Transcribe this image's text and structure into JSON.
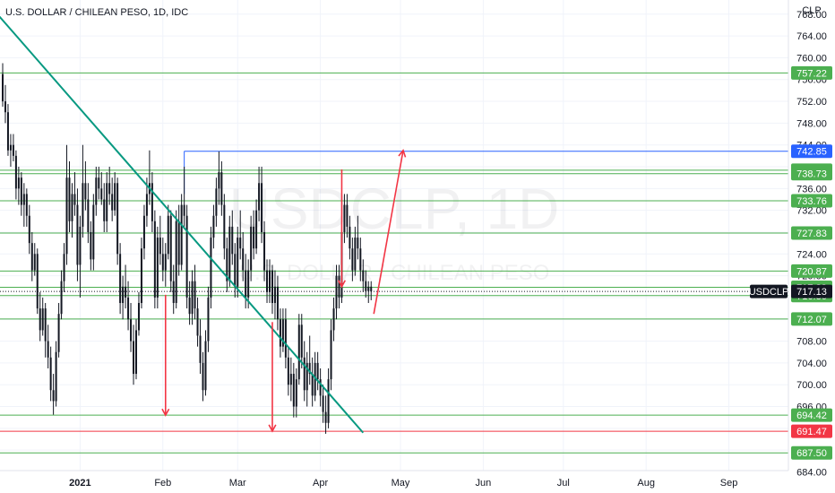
{
  "chart_data": {
    "type": "candlestick",
    "title": "U.S. DOLLAR / CHILEAN PESO, 1D, IDC",
    "watermark_symbol": "USDCLP, 1D",
    "watermark_name": "U.S. DOLLAR / CHILEAN PESO",
    "currency_label": "CLP",
    "symbol": "USDCLP",
    "last_price": 717.13,
    "ylim": [
      684,
      768
    ],
    "y_ticks": [
      "684.00",
      "688.00",
      "692.00",
      "696.00",
      "700.00",
      "704.00",
      "708.00",
      "712.00",
      "716.00",
      "720.00",
      "724.00",
      "728.00",
      "732.00",
      "736.00",
      "740.00",
      "744.00",
      "748.00",
      "752.00",
      "756.00",
      "760.00",
      "764.00",
      "768.00"
    ],
    "x_ticks": [
      {
        "label": "2021",
        "day": 29
      },
      {
        "label": "Feb",
        "day": 60
      },
      {
        "label": "Mar",
        "day": 88
      },
      {
        "label": "Apr",
        "day": 119
      },
      {
        "label": "May",
        "day": 149
      },
      {
        "label": "Jun",
        "day": 180
      },
      {
        "label": "Jul",
        "day": 210
      },
      {
        "label": "Aug",
        "day": 241
      },
      {
        "label": "Sep",
        "day": 272
      }
    ],
    "price_levels": [
      {
        "value": 757.22,
        "label": "757.22",
        "color": "#4caf50"
      },
      {
        "value": 742.85,
        "label": "742.85",
        "color": "#2962ff"
      },
      {
        "value": 739.37,
        "label": "739.37",
        "color": "#4caf50"
      },
      {
        "value": 738.73,
        "label": "738.73",
        "color": "#4caf50"
      },
      {
        "value": 733.76,
        "label": "733.76",
        "color": "#4caf50"
      },
      {
        "value": 727.83,
        "label": "727.83",
        "color": "#4caf50"
      },
      {
        "value": 720.87,
        "label": "720.87",
        "color": "#4caf50"
      },
      {
        "value": 717.89,
        "label": "717.89",
        "color": "#4caf50"
      },
      {
        "value": 716.36,
        "label": "716.36",
        "color": "#4caf50"
      },
      {
        "value": 712.07,
        "label": "712.07",
        "color": "#4caf50"
      },
      {
        "value": 694.42,
        "label": "694.42",
        "color": "#4caf50"
      },
      {
        "value": 691.47,
        "label": "691.47",
        "color": "#f23645"
      },
      {
        "value": 687.5,
        "label": "687.50",
        "color": "#4caf50"
      }
    ],
    "candles": [
      {
        "d": 0,
        "o": 757.0,
        "h": 759.0,
        "l": 751.0,
        "c": 752.0
      },
      {
        "d": 1,
        "o": 752.0,
        "h": 755.0,
        "l": 748.0,
        "c": 750.0
      },
      {
        "d": 2,
        "o": 750.0,
        "h": 751.5,
        "l": 742.0,
        "c": 743.0
      },
      {
        "d": 3,
        "o": 743.0,
        "h": 746.0,
        "l": 740.0,
        "c": 744.0
      },
      {
        "d": 4,
        "o": 744.0,
        "h": 746.0,
        "l": 741.0,
        "c": 742.0
      },
      {
        "d": 5,
        "o": 742.0,
        "h": 743.0,
        "l": 734.0,
        "c": 736.0
      },
      {
        "d": 6,
        "o": 736.0,
        "h": 740.0,
        "l": 733.0,
        "c": 738.0
      },
      {
        "d": 7,
        "o": 738.0,
        "h": 739.0,
        "l": 731.0,
        "c": 733.0
      },
      {
        "d": 8,
        "o": 733.0,
        "h": 737.0,
        "l": 729.0,
        "c": 735.0
      },
      {
        "d": 9,
        "o": 735.0,
        "h": 736.0,
        "l": 729.0,
        "c": 731.0
      },
      {
        "d": 10,
        "o": 731.0,
        "h": 733.0,
        "l": 724.0,
        "c": 726.0
      },
      {
        "d": 11,
        "o": 726.0,
        "h": 728.0,
        "l": 719.0,
        "c": 721.0
      },
      {
        "d": 12,
        "o": 721.0,
        "h": 726.0,
        "l": 720.0,
        "c": 724.0
      },
      {
        "d": 13,
        "o": 724.0,
        "h": 725.0,
        "l": 713.0,
        "c": 714.0
      },
      {
        "d": 14,
        "o": 714.0,
        "h": 717.0,
        "l": 708.0,
        "c": 710.0
      },
      {
        "d": 15,
        "o": 710.0,
        "h": 716.0,
        "l": 709.0,
        "c": 714.0
      },
      {
        "d": 16,
        "o": 714.0,
        "h": 715.0,
        "l": 705.0,
        "c": 708.0
      },
      {
        "d": 17,
        "o": 708.0,
        "h": 711.0,
        "l": 703.0,
        "c": 705.0
      },
      {
        "d": 18,
        "o": 705.0,
        "h": 707.0,
        "l": 697.0,
        "c": 699.0
      },
      {
        "d": 19,
        "o": 699.0,
        "h": 702.0,
        "l": 694.5,
        "c": 697.0
      },
      {
        "d": 20,
        "o": 697.0,
        "h": 708.0,
        "l": 696.0,
        "c": 706.0
      },
      {
        "d": 21,
        "o": 706.0,
        "h": 715.0,
        "l": 705.0,
        "c": 713.0
      },
      {
        "d": 22,
        "o": 713.0,
        "h": 721.0,
        "l": 712.0,
        "c": 719.0
      },
      {
        "d": 23,
        "o": 719.0,
        "h": 726.0,
        "l": 717.0,
        "c": 724.0
      },
      {
        "d": 24,
        "o": 724.0,
        "h": 744.0,
        "l": 722.0,
        "c": 738.0
      },
      {
        "d": 25,
        "o": 738.0,
        "h": 741.0,
        "l": 728.0,
        "c": 730.0
      },
      {
        "d": 26,
        "o": 730.0,
        "h": 737.0,
        "l": 727.0,
        "c": 735.0
      },
      {
        "d": 27,
        "o": 735.0,
        "h": 739.0,
        "l": 731.0,
        "c": 733.0
      },
      {
        "d": 28,
        "o": 733.0,
        "h": 736.0,
        "l": 719.0,
        "c": 722.0
      },
      {
        "d": 29,
        "o": 722.0,
        "h": 731.0,
        "l": 716.0,
        "c": 729.0
      },
      {
        "d": 30,
        "o": 729.0,
        "h": 744.0,
        "l": 727.0,
        "c": 737.0
      },
      {
        "d": 31,
        "o": 737.0,
        "h": 741.0,
        "l": 732.0,
        "c": 734.0
      },
      {
        "d": 32,
        "o": 734.0,
        "h": 737.0,
        "l": 726.0,
        "c": 728.0
      },
      {
        "d": 33,
        "o": 728.0,
        "h": 730.0,
        "l": 721.0,
        "c": 723.0
      },
      {
        "d": 34,
        "o": 723.0,
        "h": 735.0,
        "l": 721.0,
        "c": 733.0
      },
      {
        "d": 35,
        "o": 733.0,
        "h": 740.0,
        "l": 731.0,
        "c": 738.0
      },
      {
        "d": 36,
        "o": 738.0,
        "h": 740.0,
        "l": 734.0,
        "c": 736.0
      },
      {
        "d": 37,
        "o": 736.0,
        "h": 739.0,
        "l": 733.0,
        "c": 734.0
      },
      {
        "d": 38,
        "o": 734.0,
        "h": 737.0,
        "l": 728.0,
        "c": 730.0
      },
      {
        "d": 39,
        "o": 730.0,
        "h": 739.0,
        "l": 728.0,
        "c": 737.0
      },
      {
        "d": 40,
        "o": 737.0,
        "h": 740.0,
        "l": 733.0,
        "c": 735.0
      },
      {
        "d": 41,
        "o": 735.0,
        "h": 738.0,
        "l": 730.0,
        "c": 732.0
      },
      {
        "d": 42,
        "o": 732.0,
        "h": 739.0,
        "l": 731.0,
        "c": 737.0
      },
      {
        "d": 43,
        "o": 737.0,
        "h": 738.0,
        "l": 722.0,
        "c": 724.0
      },
      {
        "d": 44,
        "o": 724.0,
        "h": 726.0,
        "l": 713.0,
        "c": 715.0
      },
      {
        "d": 45,
        "o": 715.0,
        "h": 720.0,
        "l": 712.0,
        "c": 718.0
      },
      {
        "d": 46,
        "o": 718.0,
        "h": 722.0,
        "l": 714.0,
        "c": 716.0
      },
      {
        "d": 47,
        "o": 716.0,
        "h": 719.0,
        "l": 710.0,
        "c": 712.0
      },
      {
        "d": 48,
        "o": 712.0,
        "h": 715.0,
        "l": 706.0,
        "c": 708.0
      },
      {
        "d": 49,
        "o": 708.0,
        "h": 711.0,
        "l": 700.0,
        "c": 702.0
      },
      {
        "d": 50,
        "o": 702.0,
        "h": 712.0,
        "l": 701.0,
        "c": 710.0
      },
      {
        "d": 51,
        "o": 710.0,
        "h": 717.0,
        "l": 709.0,
        "c": 715.0
      },
      {
        "d": 52,
        "o": 715.0,
        "h": 727.0,
        "l": 714.0,
        "c": 725.0
      },
      {
        "d": 53,
        "o": 725.0,
        "h": 733.0,
        "l": 723.0,
        "c": 731.0
      },
      {
        "d": 54,
        "o": 731.0,
        "h": 738.0,
        "l": 729.0,
        "c": 735.0
      },
      {
        "d": 55,
        "o": 735.0,
        "h": 743.0,
        "l": 733.0,
        "c": 737.0
      },
      {
        "d": 56,
        "o": 737.0,
        "h": 739.0,
        "l": 728.0,
        "c": 730.0
      },
      {
        "d": 57,
        "o": 730.0,
        "h": 732.0,
        "l": 714.0,
        "c": 716.0
      },
      {
        "d": 58,
        "o": 716.0,
        "h": 729.0,
        "l": 714.0,
        "c": 727.0
      },
      {
        "d": 59,
        "o": 727.0,
        "h": 731.0,
        "l": 722.0,
        "c": 724.0
      },
      {
        "d": 60,
        "o": 724.0,
        "h": 727.0,
        "l": 719.0,
        "c": 721.0
      },
      {
        "d": 61,
        "o": 721.0,
        "h": 726.0,
        "l": 718.0,
        "c": 724.0
      },
      {
        "d": 62,
        "o": 724.0,
        "h": 733.0,
        "l": 723.0,
        "c": 731.0
      },
      {
        "d": 63,
        "o": 731.0,
        "h": 732.0,
        "l": 717.0,
        "c": 719.0
      },
      {
        "d": 64,
        "o": 719.0,
        "h": 722.0,
        "l": 713.0,
        "c": 715.0
      },
      {
        "d": 65,
        "o": 715.0,
        "h": 732.0,
        "l": 714.0,
        "c": 730.0
      },
      {
        "d": 66,
        "o": 730.0,
        "h": 733.0,
        "l": 720.0,
        "c": 722.0
      },
      {
        "d": 67,
        "o": 722.0,
        "h": 735.0,
        "l": 721.0,
        "c": 733.0
      },
      {
        "d": 68,
        "o": 733.0,
        "h": 740.0,
        "l": 729.0,
        "c": 731.0
      },
      {
        "d": 69,
        "o": 731.0,
        "h": 733.0,
        "l": 714.0,
        "c": 716.0
      },
      {
        "d": 70,
        "o": 716.0,
        "h": 719.0,
        "l": 711.0,
        "c": 713.0
      },
      {
        "d": 71,
        "o": 713.0,
        "h": 721.0,
        "l": 711.0,
        "c": 719.0
      },
      {
        "d": 72,
        "o": 719.0,
        "h": 722.0,
        "l": 712.0,
        "c": 714.0
      },
      {
        "d": 73,
        "o": 714.0,
        "h": 716.0,
        "l": 707.0,
        "c": 709.0
      },
      {
        "d": 74,
        "o": 709.0,
        "h": 712.0,
        "l": 702.0,
        "c": 704.0
      },
      {
        "d": 75,
        "o": 704.0,
        "h": 706.0,
        "l": 697.0,
        "c": 699.0
      },
      {
        "d": 76,
        "o": 699.0,
        "h": 710.0,
        "l": 698.0,
        "c": 708.0
      },
      {
        "d": 77,
        "o": 708.0,
        "h": 718.0,
        "l": 706.0,
        "c": 716.0
      },
      {
        "d": 78,
        "o": 716.0,
        "h": 729.0,
        "l": 714.0,
        "c": 727.0
      },
      {
        "d": 79,
        "o": 727.0,
        "h": 733.0,
        "l": 725.0,
        "c": 731.0
      },
      {
        "d": 80,
        "o": 731.0,
        "h": 738.0,
        "l": 729.0,
        "c": 736.0
      },
      {
        "d": 81,
        "o": 736.0,
        "h": 742.8,
        "l": 733.0,
        "c": 739.0
      },
      {
        "d": 82,
        "o": 739.0,
        "h": 741.0,
        "l": 731.0,
        "c": 733.0
      },
      {
        "d": 83,
        "o": 733.0,
        "h": 735.0,
        "l": 723.0,
        "c": 725.0
      },
      {
        "d": 84,
        "o": 725.0,
        "h": 727.0,
        "l": 717.0,
        "c": 719.0
      },
      {
        "d": 85,
        "o": 719.0,
        "h": 731.0,
        "l": 718.0,
        "c": 729.0
      },
      {
        "d": 86,
        "o": 729.0,
        "h": 732.0,
        "l": 722.0,
        "c": 724.0
      },
      {
        "d": 87,
        "o": 724.0,
        "h": 726.0,
        "l": 716.0,
        "c": 718.0
      },
      {
        "d": 88,
        "o": 718.0,
        "h": 729.0,
        "l": 716.0,
        "c": 727.0
      },
      {
        "d": 89,
        "o": 727.0,
        "h": 732.0,
        "l": 723.0,
        "c": 725.0
      },
      {
        "d": 90,
        "o": 725.0,
        "h": 728.0,
        "l": 719.0,
        "c": 721.0
      },
      {
        "d": 91,
        "o": 721.0,
        "h": 724.0,
        "l": 714.0,
        "c": 716.0
      },
      {
        "d": 92,
        "o": 716.0,
        "h": 723.0,
        "l": 714.0,
        "c": 721.0
      },
      {
        "d": 93,
        "o": 721.0,
        "h": 731.0,
        "l": 719.0,
        "c": 729.0
      },
      {
        "d": 94,
        "o": 729.0,
        "h": 732.0,
        "l": 723.0,
        "c": 725.0
      },
      {
        "d": 95,
        "o": 725.0,
        "h": 734.0,
        "l": 724.0,
        "c": 732.0
      },
      {
        "d": 96,
        "o": 732.0,
        "h": 740.0,
        "l": 730.0,
        "c": 737.0
      },
      {
        "d": 97,
        "o": 737.0,
        "h": 740.0,
        "l": 726.0,
        "c": 728.0
      },
      {
        "d": 98,
        "o": 728.0,
        "h": 730.0,
        "l": 719.0,
        "c": 721.0
      },
      {
        "d": 99,
        "o": 721.0,
        "h": 723.0,
        "l": 715.0,
        "c": 717.0
      },
      {
        "d": 100,
        "o": 717.0,
        "h": 723.0,
        "l": 715.0,
        "c": 721.0
      },
      {
        "d": 101,
        "o": 721.0,
        "h": 722.0,
        "l": 713.0,
        "c": 715.0
      },
      {
        "d": 102,
        "o": 715.0,
        "h": 721.0,
        "l": 712.0,
        "c": 718.0
      },
      {
        "d": 103,
        "o": 718.0,
        "h": 720.0,
        "l": 710.0,
        "c": 712.0
      },
      {
        "d": 104,
        "o": 712.0,
        "h": 714.0,
        "l": 705.0,
        "c": 707.0
      },
      {
        "d": 105,
        "o": 707.0,
        "h": 714.0,
        "l": 706.0,
        "c": 712.0
      },
      {
        "d": 106,
        "o": 712.0,
        "h": 714.0,
        "l": 703.0,
        "c": 705.0
      },
      {
        "d": 107,
        "o": 705.0,
        "h": 707.0,
        "l": 698.0,
        "c": 700.0
      },
      {
        "d": 108,
        "o": 700.0,
        "h": 705.0,
        "l": 697.0,
        "c": 702.0
      },
      {
        "d": 109,
        "o": 702.0,
        "h": 704.0,
        "l": 694.0,
        "c": 696.0
      },
      {
        "d": 110,
        "o": 696.0,
        "h": 703.0,
        "l": 694.0,
        "c": 701.0
      },
      {
        "d": 111,
        "o": 701.0,
        "h": 713.0,
        "l": 700.0,
        "c": 711.0
      },
      {
        "d": 112,
        "o": 711.0,
        "h": 713.0,
        "l": 703.0,
        "c": 705.0
      },
      {
        "d": 113,
        "o": 705.0,
        "h": 708.0,
        "l": 697.0,
        "c": 699.0
      },
      {
        "d": 114,
        "o": 699.0,
        "h": 706.0,
        "l": 696.0,
        "c": 704.0
      },
      {
        "d": 115,
        "o": 704.0,
        "h": 709.0,
        "l": 700.0,
        "c": 702.0
      },
      {
        "d": 116,
        "o": 702.0,
        "h": 705.0,
        "l": 696.0,
        "c": 698.0
      },
      {
        "d": 117,
        "o": 698.0,
        "h": 706.0,
        "l": 697.0,
        "c": 704.0
      },
      {
        "d": 118,
        "o": 704.0,
        "h": 706.0,
        "l": 699.0,
        "c": 701.0
      },
      {
        "d": 119,
        "o": 701.0,
        "h": 703.0,
        "l": 696.0,
        "c": 698.0
      },
      {
        "d": 120,
        "o": 698.0,
        "h": 700.0,
        "l": 693.0,
        "c": 695.0
      },
      {
        "d": 121,
        "o": 695.0,
        "h": 698.0,
        "l": 691.0,
        "c": 693.0
      },
      {
        "d": 122,
        "o": 693.0,
        "h": 703.0,
        "l": 692.0,
        "c": 701.0
      },
      {
        "d": 123,
        "o": 701.0,
        "h": 712.0,
        "l": 699.0,
        "c": 710.0
      },
      {
        "d": 124,
        "o": 710.0,
        "h": 716.0,
        "l": 708.0,
        "c": 714.0
      },
      {
        "d": 125,
        "o": 714.0,
        "h": 722.0,
        "l": 712.0,
        "c": 720.0
      },
      {
        "d": 126,
        "o": 720.0,
        "h": 722.0,
        "l": 714.0,
        "c": 716.0
      },
      {
        "d": 127,
        "o": 716.0,
        "h": 730.0,
        "l": 715.0,
        "c": 728.0
      },
      {
        "d": 128,
        "o": 728.0,
        "h": 735.0,
        "l": 726.0,
        "c": 733.0
      },
      {
        "d": 129,
        "o": 733.0,
        "h": 735.0,
        "l": 727.0,
        "c": 729.0
      },
      {
        "d": 130,
        "o": 729.0,
        "h": 731.0,
        "l": 723.0,
        "c": 725.0
      },
      {
        "d": 131,
        "o": 725.0,
        "h": 727.0,
        "l": 719.0,
        "c": 721.0
      },
      {
        "d": 132,
        "o": 721.0,
        "h": 729.0,
        "l": 720.0,
        "c": 727.0
      },
      {
        "d": 133,
        "o": 727.0,
        "h": 731.0,
        "l": 723.0,
        "c": 725.0
      },
      {
        "d": 134,
        "o": 725.0,
        "h": 727.0,
        "l": 719.0,
        "c": 721.0
      },
      {
        "d": 135,
        "o": 721.0,
        "h": 723.0,
        "l": 717.0,
        "c": 719.0
      },
      {
        "d": 136,
        "o": 719.0,
        "h": 721.0,
        "l": 716.0,
        "c": 717.2
      },
      {
        "d": 137,
        "o": 717.2,
        "h": 719.0,
        "l": 715.0,
        "c": 718.0
      },
      {
        "d": 138,
        "o": 718.0,
        "h": 719.0,
        "l": 715.5,
        "c": 717.13
      }
    ],
    "annotations": {
      "trendline_start": {
        "day": -2,
        "value": 768
      },
      "trendline_end": {
        "day": 135,
        "value": 691.2
      },
      "blue_ray_day": 68,
      "red_arrow_up": {
        "from_day": 139,
        "from_value": 713.0,
        "to_day": 150,
        "to_value": 743.0
      },
      "red_arrows_down": [
        {
          "day": 61,
          "from": 716.5,
          "to": 694.4
        },
        {
          "day": 101,
          "from": 711.5,
          "to": 691.5
        },
        {
          "day": 127,
          "from": 739.5,
          "to": 718.0
        }
      ]
    }
  }
}
